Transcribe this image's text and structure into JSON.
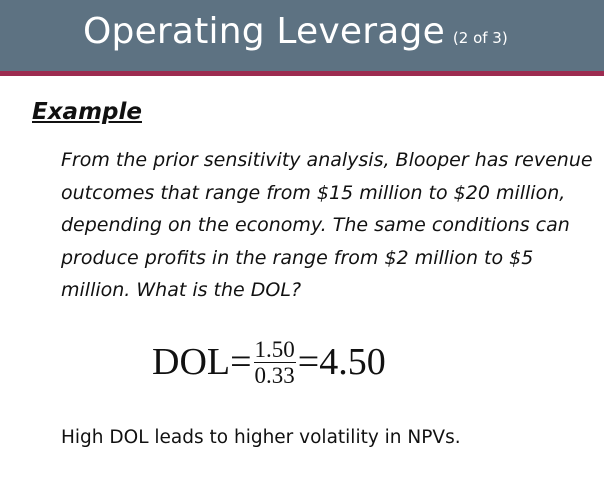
{
  "header": {
    "title": "Operating Leverage",
    "subtitle": "(2 of 3)",
    "bar_color": "#5d7282",
    "rule_color": "#9c2b50"
  },
  "example": {
    "heading": "Example",
    "text": "From the prior sensitivity analysis, Blooper has revenue outcomes that range from $15 million to $20 million, depending on the economy. The same conditions can produce profits in the range from $2 million to $5 million. What is the DOL?"
  },
  "equation": {
    "lhs": "DOL",
    "eq1": "=",
    "numerator": "1.50",
    "denominator": "0.33",
    "eq2": "=",
    "result": "4.50"
  },
  "footer": {
    "text": "High DOL leads to higher volatility in NPVs."
  }
}
